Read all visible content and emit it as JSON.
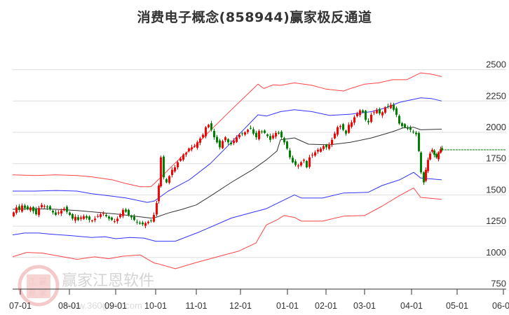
{
  "title": "消费电子概念(858944)赢家极反通道",
  "watermark": {
    "name": "赢家江恩软件",
    "url": "www.360gann.com",
    "seal_chars": [
      "江",
      "赢",
      "恩",
      "家"
    ]
  },
  "colors": {
    "up": "#ff0000",
    "down": "#008000",
    "outer_band": "#ff4444",
    "inner_band": "#3333ff",
    "mid_line": "#333333",
    "grid": "#dddddd",
    "last_price_line": "#008000"
  },
  "chart_data": {
    "type": "line",
    "title": "消费电子概念(858944)赢家极反通道",
    "xlabel": "",
    "ylabel": "",
    "ylim": [
      750,
      2500
    ],
    "y_ticks": [
      2500,
      2250,
      2000,
      1750,
      1500,
      1250,
      1000,
      750
    ],
    "x_ticks": [
      {
        "label": "07-01",
        "x": 29
      },
      {
        "label": "08-01",
        "x": 99
      },
      {
        "label": "09-01",
        "x": 165
      },
      {
        "label": "10-01",
        "x": 222
      },
      {
        "label": "11-01",
        "x": 280
      },
      {
        "label": "12-01",
        "x": 343
      },
      {
        "label": "01-01",
        "x": 410
      },
      {
        "label": "02-01",
        "x": 465
      },
      {
        "label": "03-01",
        "x": 520
      },
      {
        "label": "04-01",
        "x": 587
      },
      {
        "label": "05-01",
        "x": 652
      },
      {
        "label": "06-01",
        "x": 718
      }
    ],
    "grid": true,
    "legend": "none",
    "last_price": 1860,
    "series": [
      {
        "name": "upper_outer",
        "color": "#ff4444",
        "points": [
          [
            18,
            1660
          ],
          [
            50,
            1655
          ],
          [
            80,
            1660
          ],
          [
            110,
            1655
          ],
          [
            130,
            1645
          ],
          [
            160,
            1620
          ],
          [
            180,
            1590
          ],
          [
            200,
            1565
          ],
          [
            215,
            1565
          ],
          [
            222,
            1600
          ],
          [
            240,
            1700
          ],
          [
            260,
            1810
          ],
          [
            280,
            1900
          ],
          [
            300,
            2015
          ],
          [
            330,
            2180
          ],
          [
            368,
            2385
          ],
          [
            376,
            2350
          ],
          [
            390,
            2380
          ],
          [
            400,
            2375
          ],
          [
            420,
            2395
          ],
          [
            445,
            2375
          ],
          [
            465,
            2345
          ],
          [
            490,
            2330
          ],
          [
            500,
            2350
          ],
          [
            520,
            2385
          ],
          [
            540,
            2395
          ],
          [
            560,
            2420
          ],
          [
            580,
            2420
          ],
          [
            600,
            2475
          ],
          [
            615,
            2465
          ],
          [
            630,
            2445
          ]
        ]
      },
      {
        "name": "upper_inner",
        "color": "#3333ff",
        "points": [
          [
            18,
            1530
          ],
          [
            50,
            1530
          ],
          [
            80,
            1535
          ],
          [
            110,
            1530
          ],
          [
            130,
            1510
          ],
          [
            160,
            1490
          ],
          [
            180,
            1475
          ],
          [
            210,
            1440
          ],
          [
            220,
            1450
          ],
          [
            240,
            1530
          ],
          [
            270,
            1620
          ],
          [
            300,
            1750
          ],
          [
            330,
            1920
          ],
          [
            368,
            2140
          ],
          [
            380,
            2130
          ],
          [
            400,
            2165
          ],
          [
            420,
            2180
          ],
          [
            445,
            2165
          ],
          [
            470,
            2135
          ],
          [
            500,
            2145
          ],
          [
            530,
            2165
          ],
          [
            550,
            2195
          ],
          [
            570,
            2240
          ],
          [
            600,
            2275
          ],
          [
            615,
            2270
          ],
          [
            630,
            2250
          ]
        ]
      },
      {
        "name": "middle",
        "color": "#333333",
        "points": [
          [
            18,
            1385
          ],
          [
            50,
            1390
          ],
          [
            80,
            1385
          ],
          [
            110,
            1375
          ],
          [
            140,
            1360
          ],
          [
            170,
            1345
          ],
          [
            200,
            1325
          ],
          [
            215,
            1315
          ],
          [
            222,
            1320
          ],
          [
            240,
            1355
          ],
          [
            260,
            1385
          ],
          [
            280,
            1420
          ],
          [
            300,
            1490
          ],
          [
            330,
            1600
          ],
          [
            360,
            1700
          ],
          [
            380,
            1780
          ],
          [
            395,
            1850
          ],
          [
            400,
            1940
          ],
          [
            420,
            1955
          ],
          [
            440,
            1905
          ],
          [
            470,
            1900
          ],
          [
            500,
            1920
          ],
          [
            530,
            1955
          ],
          [
            560,
            2005
          ],
          [
            575,
            2035
          ],
          [
            590,
            2040
          ],
          [
            600,
            2020
          ],
          [
            630,
            2025
          ]
        ]
      },
      {
        "name": "lower_inner",
        "color": "#3333ff",
        "points": [
          [
            18,
            1180
          ],
          [
            35,
            1195
          ],
          [
            55,
            1195
          ],
          [
            75,
            1185
          ],
          [
            100,
            1175
          ],
          [
            130,
            1160
          ],
          [
            150,
            1165
          ],
          [
            165,
            1150
          ],
          [
            185,
            1160
          ],
          [
            205,
            1155
          ],
          [
            222,
            1130
          ],
          [
            250,
            1130
          ],
          [
            285,
            1205
          ],
          [
            330,
            1315
          ],
          [
            360,
            1360
          ],
          [
            380,
            1390
          ],
          [
            400,
            1445
          ],
          [
            420,
            1500
          ],
          [
            430,
            1475
          ],
          [
            460,
            1475
          ],
          [
            490,
            1515
          ],
          [
            525,
            1520
          ],
          [
            545,
            1575
          ],
          [
            570,
            1620
          ],
          [
            590,
            1680
          ],
          [
            600,
            1635
          ],
          [
            630,
            1620
          ]
        ]
      },
      {
        "name": "lower_outer",
        "color": "#ff4444",
        "points": [
          [
            18,
            1005
          ],
          [
            38,
            1040
          ],
          [
            60,
            1035
          ],
          [
            90,
            1005
          ],
          [
            110,
            985
          ],
          [
            135,
            1005
          ],
          [
            155,
            990
          ],
          [
            175,
            1010
          ],
          [
            200,
            1020
          ],
          [
            220,
            955
          ],
          [
            225,
            950
          ],
          [
            250,
            910
          ],
          [
            280,
            960
          ],
          [
            310,
            1005
          ],
          [
            340,
            1050
          ],
          [
            365,
            1115
          ],
          [
            380,
            1260
          ],
          [
            395,
            1300
          ],
          [
            405,
            1335
          ],
          [
            420,
            1320
          ],
          [
            430,
            1290
          ],
          [
            460,
            1290
          ],
          [
            490,
            1330
          ],
          [
            520,
            1335
          ],
          [
            545,
            1410
          ],
          [
            570,
            1495
          ],
          [
            590,
            1555
          ],
          [
            600,
            1480
          ],
          [
            630,
            1465
          ]
        ]
      }
    ],
    "candles_close": [
      [
        18,
        1360
      ],
      [
        22,
        1400
      ],
      [
        26,
        1380
      ],
      [
        30,
        1415
      ],
      [
        34,
        1395
      ],
      [
        38,
        1385
      ],
      [
        42,
        1400
      ],
      [
        46,
        1370
      ],
      [
        50,
        1345
      ],
      [
        54,
        1395
      ],
      [
        58,
        1420
      ],
      [
        62,
        1410
      ],
      [
        66,
        1400
      ],
      [
        70,
        1385
      ],
      [
        74,
        1360
      ],
      [
        78,
        1340
      ],
      [
        82,
        1360
      ],
      [
        86,
        1375
      ],
      [
        90,
        1390
      ],
      [
        94,
        1365
      ],
      [
        98,
        1340
      ],
      [
        102,
        1310
      ],
      [
        106,
        1325
      ],
      [
        110,
        1300
      ],
      [
        114,
        1320
      ],
      [
        118,
        1330
      ],
      [
        122,
        1315
      ],
      [
        126,
        1300
      ],
      [
        130,
        1295
      ],
      [
        134,
        1310
      ],
      [
        138,
        1330
      ],
      [
        142,
        1345
      ],
      [
        146,
        1355
      ],
      [
        150,
        1330
      ],
      [
        154,
        1310
      ],
      [
        158,
        1300
      ],
      [
        162,
        1290
      ],
      [
        166,
        1310
      ],
      [
        170,
        1340
      ],
      [
        174,
        1380
      ],
      [
        178,
        1365
      ],
      [
        182,
        1340
      ],
      [
        186,
        1320
      ],
      [
        190,
        1300
      ],
      [
        194,
        1280
      ],
      [
        198,
        1270
      ],
      [
        202,
        1265
      ],
      [
        206,
        1275
      ],
      [
        210,
        1285
      ],
      [
        214,
        1295
      ],
      [
        218,
        1340
      ],
      [
        222,
        1435
      ],
      [
        225,
        1575
      ],
      [
        228,
        1800
      ],
      [
        232,
        1640
      ],
      [
        236,
        1600
      ],
      [
        240,
        1650
      ],
      [
        244,
        1700
      ],
      [
        248,
        1720
      ],
      [
        252,
        1760
      ],
      [
        256,
        1790
      ],
      [
        260,
        1820
      ],
      [
        264,
        1835
      ],
      [
        268,
        1870
      ],
      [
        272,
        1880
      ],
      [
        276,
        1890
      ],
      [
        280,
        1920
      ],
      [
        284,
        1950
      ],
      [
        288,
        1980
      ],
      [
        292,
        2040
      ],
      [
        296,
        2060
      ],
      [
        300,
        2020
      ],
      [
        304,
        1960
      ],
      [
        308,
        1920
      ],
      [
        312,
        1880
      ],
      [
        316,
        1930
      ],
      [
        320,
        1960
      ],
      [
        324,
        1920
      ],
      [
        328,
        1905
      ],
      [
        332,
        1935
      ],
      [
        336,
        1960
      ],
      [
        340,
        1980
      ],
      [
        344,
        1990
      ],
      [
        348,
        2000
      ],
      [
        352,
        2020
      ],
      [
        356,
        2030
      ],
      [
        360,
        1990
      ],
      [
        364,
        1960
      ],
      [
        368,
        2010
      ],
      [
        372,
        2005
      ],
      [
        376,
        1995
      ],
      [
        380,
        1970
      ],
      [
        384,
        1940
      ],
      [
        388,
        1975
      ],
      [
        392,
        1995
      ],
      [
        396,
        1990
      ],
      [
        400,
        1960
      ],
      [
        404,
        1920
      ],
      [
        408,
        1870
      ],
      [
        412,
        1800
      ],
      [
        416,
        1760
      ],
      [
        420,
        1740
      ],
      [
        424,
        1735
      ],
      [
        428,
        1760
      ],
      [
        432,
        1780
      ],
      [
        436,
        1720
      ],
      [
        440,
        1800
      ],
      [
        444,
        1820
      ],
      [
        448,
        1840
      ],
      [
        452,
        1860
      ],
      [
        456,
        1870
      ],
      [
        460,
        1890
      ],
      [
        464,
        1880
      ],
      [
        468,
        1900
      ],
      [
        472,
        1940
      ],
      [
        476,
        1990
      ],
      [
        480,
        2040
      ],
      [
        484,
        2050
      ],
      [
        488,
        2020
      ],
      [
        492,
        1990
      ],
      [
        496,
        2060
      ],
      [
        500,
        2080
      ],
      [
        504,
        2120
      ],
      [
        508,
        2150
      ],
      [
        512,
        2175
      ],
      [
        516,
        2160
      ],
      [
        520,
        2100
      ],
      [
        524,
        2080
      ],
      [
        528,
        2140
      ],
      [
        532,
        2160
      ],
      [
        536,
        2180
      ],
      [
        540,
        2150
      ],
      [
        544,
        2160
      ],
      [
        548,
        2200
      ],
      [
        552,
        2205
      ],
      [
        556,
        2220
      ],
      [
        560,
        2180
      ],
      [
        564,
        2140
      ],
      [
        568,
        2070
      ],
      [
        572,
        2050
      ],
      [
        576,
        2040
      ],
      [
        580,
        2030
      ],
      [
        584,
        2020
      ],
      [
        588,
        2000
      ],
      [
        592,
        1985
      ],
      [
        596,
        1850
      ],
      [
        599,
        1680
      ],
      [
        603,
        1600
      ],
      [
        606,
        1700
      ],
      [
        609,
        1780
      ],
      [
        612,
        1830
      ],
      [
        615,
        1860
      ],
      [
        618,
        1820
      ],
      [
        621,
        1800
      ],
      [
        624,
        1840
      ],
      [
        627,
        1865
      ],
      [
        629,
        1860
      ]
    ]
  }
}
